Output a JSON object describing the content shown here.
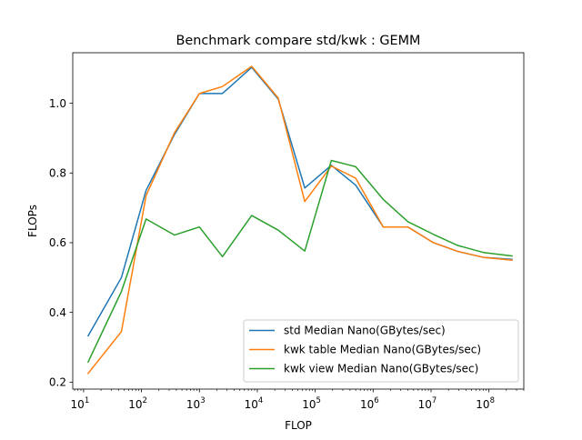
{
  "chart_data": {
    "type": "line",
    "title": "Benchmark compare std/kwk : GEMM",
    "xlabel": "FLOP",
    "ylabel": "FLOPs",
    "xscale": "log",
    "xlim": [
      6.5,
      400000000
    ],
    "ylim": [
      0.18,
      1.145
    ],
    "yticks": [
      0.2,
      0.4,
      0.6,
      0.8,
      1.0
    ],
    "ytick_labels": [
      "0.2",
      "0.4",
      "0.6",
      "0.8",
      "1.0"
    ],
    "xticks": [
      10,
      100,
      1000,
      10000,
      100000,
      1000000,
      10000000,
      100000000
    ],
    "xtick_labels": [
      {
        "base": "10",
        "exp": "1"
      },
      {
        "base": "10",
        "exp": "2"
      },
      {
        "base": "10",
        "exp": "3"
      },
      {
        "base": "10",
        "exp": "4"
      },
      {
        "base": "10",
        "exp": "5"
      },
      {
        "base": "10",
        "exp": "6"
      },
      {
        "base": "10",
        "exp": "7"
      },
      {
        "base": "10",
        "exp": "8"
      }
    ],
    "grid": false,
    "legend_position": "lower-right",
    "x": [
      12,
      45,
      120,
      370,
      1000,
      2500,
      8000,
      23000,
      66000,
      190000,
      500000,
      1500000,
      4000000,
      11000000,
      29000000,
      80000000,
      250000000
    ],
    "series": [
      {
        "name": "std Median Nano(GBytes/sec)",
        "color": "#1f77b4",
        "values": [
          0.333,
          0.5,
          0.75,
          0.91,
          1.028,
          1.028,
          1.103,
          1.012,
          0.757,
          0.822,
          0.765,
          0.645,
          0.645,
          0.6,
          0.575,
          0.558,
          0.552
        ]
      },
      {
        "name": "kwk table Median Nano(GBytes/sec)",
        "color": "#ff7f0e",
        "values": [
          0.225,
          0.345,
          0.735,
          0.915,
          1.028,
          1.048,
          1.106,
          1.015,
          0.718,
          0.82,
          0.785,
          0.645,
          0.645,
          0.6,
          0.575,
          0.558,
          0.55
        ]
      },
      {
        "name": "kwk view Median Nano(GBytes/sec)",
        "color": "#2ca02c",
        "values": [
          0.258,
          0.46,
          0.668,
          0.622,
          0.645,
          0.56,
          0.678,
          0.636,
          0.576,
          0.836,
          0.818,
          0.724,
          0.66,
          0.624,
          0.592,
          0.572,
          0.562
        ]
      }
    ]
  }
}
